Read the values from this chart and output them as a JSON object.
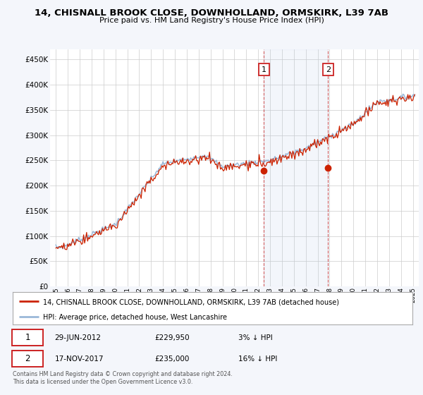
{
  "title": "14, CHISNALL BROOK CLOSE, DOWNHOLLAND, ORMSKIRK, L39 7AB",
  "subtitle": "Price paid vs. HM Land Registry's House Price Index (HPI)",
  "ylabel_ticks": [
    "£0",
    "£50K",
    "£100K",
    "£150K",
    "£200K",
    "£250K",
    "£300K",
    "£350K",
    "£400K",
    "£450K"
  ],
  "ytick_values": [
    0,
    50000,
    100000,
    150000,
    200000,
    250000,
    300000,
    350000,
    400000,
    450000
  ],
  "ylim": [
    0,
    470000
  ],
  "xlim_start": 1994.5,
  "xlim_end": 2025.5,
  "hpi_color": "#9ab8d8",
  "price_color": "#cc2200",
  "background_color": "#f4f6fb",
  "plot_bg": "#ffffff",
  "transaction1_x": 2012.49,
  "transaction1_y": 229950,
  "transaction1_label": "1",
  "transaction1_date": "29-JUN-2012",
  "transaction1_price": "£229,950",
  "transaction1_note": "3% ↓ HPI",
  "transaction2_x": 2017.88,
  "transaction2_y": 235000,
  "transaction2_label": "2",
  "transaction2_date": "17-NOV-2017",
  "transaction2_price": "£235,000",
  "transaction2_note": "16% ↓ HPI",
  "footer": "Contains HM Land Registry data © Crown copyright and database right 2024.\nThis data is licensed under the Open Government Licence v3.0.",
  "legend_line1": "14, CHISNALL BROOK CLOSE, DOWNHOLLAND, ORMSKIRK, L39 7AB (detached house)",
  "legend_line2": "HPI: Average price, detached house, West Lancashire"
}
